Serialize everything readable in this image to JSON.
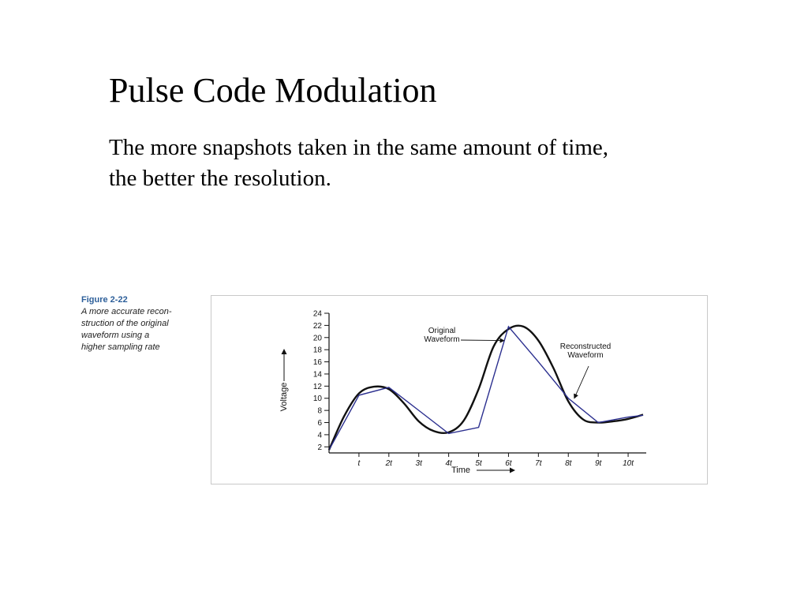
{
  "slide": {
    "title": "Pulse Code Modulation",
    "body_lines": [
      "The more snapshots taken in the same amount of time,",
      "the better the resolution."
    ]
  },
  "caption": {
    "label": "Figure 2-22",
    "lines": [
      "A more accurate recon-",
      "struction of the original",
      "waveform using a",
      "higher sampling rate"
    ]
  },
  "chart_data": {
    "type": "line",
    "xlabel": "Time",
    "ylabel": "Voltage",
    "x_tick_labels": [
      "t",
      "2t",
      "3t",
      "4t",
      "5t",
      "6t",
      "7t",
      "8t",
      "9t",
      "10t"
    ],
    "y_ticks": [
      2,
      4,
      6,
      8,
      10,
      12,
      14,
      16,
      18,
      20,
      22,
      24
    ],
    "ylim": [
      1,
      24
    ],
    "xlim": [
      0,
      10.5
    ],
    "series": [
      {
        "name": "Original Waveform",
        "color": "#111111",
        "points": [
          [
            0,
            1.5
          ],
          [
            0.5,
            7
          ],
          [
            1,
            10.8
          ],
          [
            1.5,
            11.9
          ],
          [
            2,
            11.5
          ],
          [
            2.5,
            9.2
          ],
          [
            3,
            6.2
          ],
          [
            3.5,
            4.6
          ],
          [
            4,
            4.4
          ],
          [
            4.5,
            6.3
          ],
          [
            5,
            11.5
          ],
          [
            5.5,
            18.5
          ],
          [
            6,
            21.4
          ],
          [
            6.5,
            21.8
          ],
          [
            7,
            19.5
          ],
          [
            7.5,
            15
          ],
          [
            8,
            9.5
          ],
          [
            8.5,
            6.5
          ],
          [
            9,
            6
          ],
          [
            9.5,
            6.2
          ],
          [
            10,
            6.6
          ],
          [
            10.5,
            7.3
          ]
        ]
      },
      {
        "name": "Reconstructed Waveform",
        "color": "#2b2f8f",
        "points": [
          [
            0,
            1.5
          ],
          [
            1,
            10.5
          ],
          [
            2,
            11.8
          ],
          [
            3,
            8
          ],
          [
            4,
            4.2
          ],
          [
            5,
            5.2
          ],
          [
            6,
            21.8
          ],
          [
            7,
            16
          ],
          [
            8,
            10
          ],
          [
            9,
            6
          ],
          [
            10,
            6.9
          ],
          [
            10.5,
            7.2
          ]
        ]
      }
    ],
    "annotations": [
      {
        "text": [
          "Original",
          "Waveform"
        ],
        "points_to": [
          5.85,
          19.5
        ]
      },
      {
        "text": [
          "Reconstructed",
          "Waveform"
        ],
        "points_to": [
          8.2,
          10
        ]
      }
    ]
  }
}
